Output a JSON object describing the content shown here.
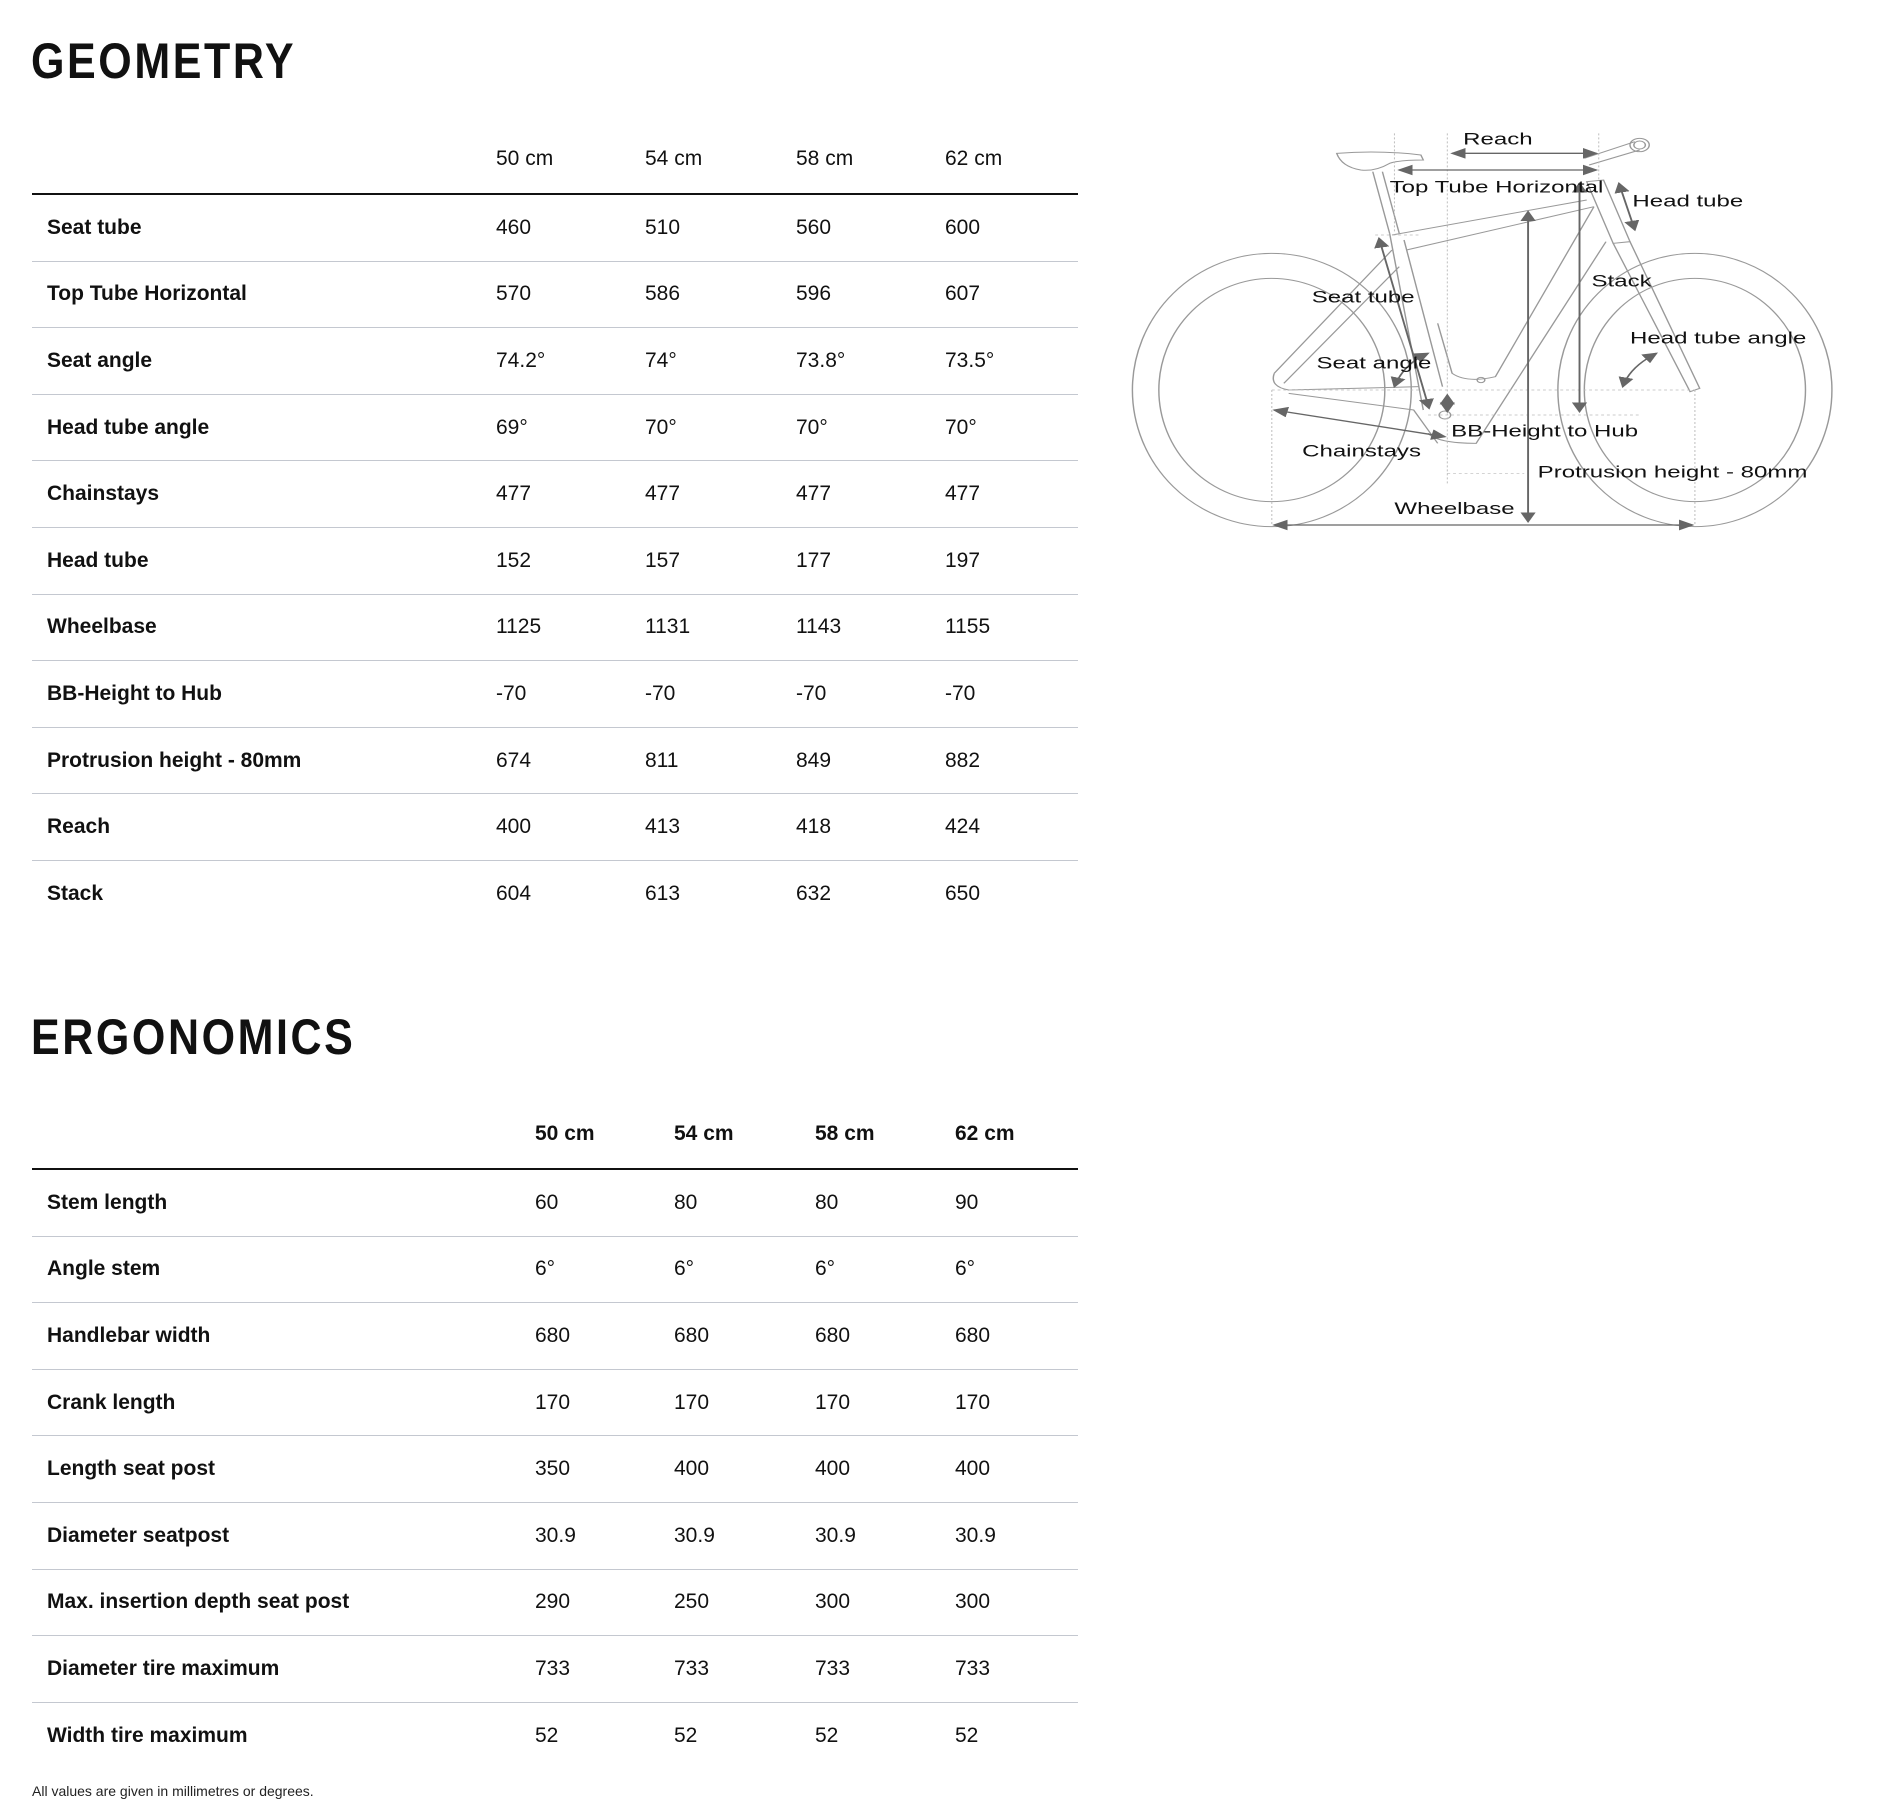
{
  "geometry": {
    "title": "GEOMETRY",
    "sizes": [
      "50 cm",
      "54 cm",
      "58 cm",
      "62 cm"
    ],
    "rows": [
      {
        "label": "Seat tube",
        "values": [
          "460",
          "510",
          "560",
          "600"
        ]
      },
      {
        "label": "Top Tube Horizontal",
        "values": [
          "570",
          "586",
          "596",
          "607"
        ]
      },
      {
        "label": "Seat angle",
        "values": [
          "74.2°",
          "74°",
          "73.8°",
          "73.5°"
        ]
      },
      {
        "label": "Head tube angle",
        "values": [
          "69°",
          "70°",
          "70°",
          "70°"
        ]
      },
      {
        "label": "Chainstays",
        "values": [
          "477",
          "477",
          "477",
          "477"
        ]
      },
      {
        "label": "Head tube",
        "values": [
          "152",
          "157",
          "177",
          "197"
        ]
      },
      {
        "label": "Wheelbase",
        "values": [
          "1125",
          "1131",
          "1143",
          "1155"
        ]
      },
      {
        "label": "BB-Height to Hub",
        "values": [
          "-70",
          "-70",
          "-70",
          "-70"
        ]
      },
      {
        "label": "Protrusion height - 80mm",
        "values": [
          "674",
          "811",
          "849",
          "882"
        ]
      },
      {
        "label": "Reach",
        "values": [
          "400",
          "413",
          "418",
          "424"
        ]
      },
      {
        "label": "Stack",
        "values": [
          "604",
          "613",
          "632",
          "650"
        ]
      }
    ]
  },
  "diagram": {
    "labels": {
      "reach": "Reach",
      "top_tube": "Top Tube Horizontal",
      "head_tube": "Head tube",
      "stack": "Stack",
      "seat_tube": "Seat tube",
      "head_tube_angle": "Head tube angle",
      "seat_angle": "Seat angle",
      "bb_height": "BB-Height to Hub",
      "chainstays": "Chainstays",
      "protrusion": "Protrusion height - 80mm",
      "wheelbase": "Wheelbase"
    }
  },
  "ergonomics": {
    "title": "ERGONOMICS",
    "sizes": [
      "50 cm",
      "54 cm",
      "58 cm",
      "62 cm"
    ],
    "rows": [
      {
        "label": "Stem length",
        "values": [
          "60",
          "80",
          "80",
          "90"
        ]
      },
      {
        "label": "Angle stem",
        "values": [
          "6°",
          "6°",
          "6°",
          "6°"
        ]
      },
      {
        "label": "Handlebar width",
        "values": [
          "680",
          "680",
          "680",
          "680"
        ]
      },
      {
        "label": "Crank length",
        "values": [
          "170",
          "170",
          "170",
          "170"
        ]
      },
      {
        "label": "Length seat post",
        "values": [
          "350",
          "400",
          "400",
          "400"
        ]
      },
      {
        "label": "Diameter seatpost",
        "values": [
          "30.9",
          "30.9",
          "30.9",
          "30.9"
        ]
      },
      {
        "label": "Max. insertion depth seat post",
        "values": [
          "290",
          "250",
          "300",
          "300"
        ]
      },
      {
        "label": "Diameter tire maximum",
        "values": [
          "733",
          "733",
          "733",
          "733"
        ]
      },
      {
        "label": "Width tire maximum",
        "values": [
          "52",
          "52",
          "52",
          "52"
        ]
      }
    ]
  },
  "footnote": "All values are given in millimetres or degrees."
}
